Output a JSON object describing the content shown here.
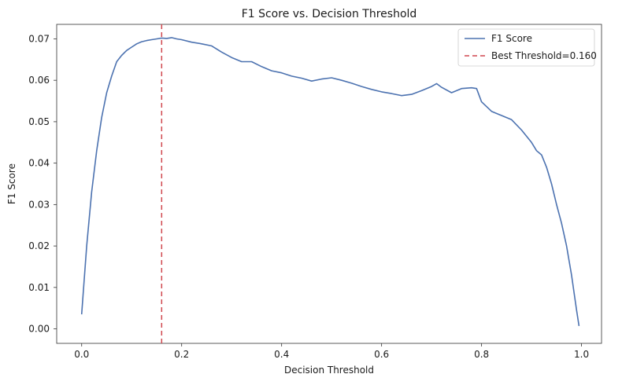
{
  "chart_data": {
    "type": "line",
    "title": "F1 Score vs. Decision Threshold",
    "xlabel": "Decision Threshold",
    "ylabel": "F1 Score",
    "xlim": [
      -0.05,
      1.04
    ],
    "ylim": [
      -0.0035,
      0.0735
    ],
    "xticks": [
      0.0,
      0.2,
      0.4,
      0.6,
      0.8,
      1.0
    ],
    "xtick_labels": [
      "0.0",
      "0.2",
      "0.4",
      "0.6",
      "0.8",
      "1.0"
    ],
    "yticks": [
      0.0,
      0.01,
      0.02,
      0.03,
      0.04,
      0.05,
      0.06,
      0.07
    ],
    "ytick_labels": [
      "0.00",
      "0.01",
      "0.02",
      "0.03",
      "0.04",
      "0.05",
      "0.06",
      "0.07"
    ],
    "grid": false,
    "legend_position": "top-right",
    "series": [
      {
        "name": "F1 Score",
        "color": "#4c72b0",
        "style": "solid",
        "x": [
          0.0,
          0.01,
          0.02,
          0.03,
          0.04,
          0.05,
          0.06,
          0.07,
          0.08,
          0.09,
          0.1,
          0.11,
          0.12,
          0.13,
          0.14,
          0.15,
          0.16,
          0.17,
          0.18,
          0.19,
          0.2,
          0.22,
          0.24,
          0.26,
          0.28,
          0.3,
          0.32,
          0.34,
          0.36,
          0.38,
          0.4,
          0.42,
          0.44,
          0.46,
          0.48,
          0.5,
          0.52,
          0.54,
          0.56,
          0.58,
          0.6,
          0.62,
          0.64,
          0.66,
          0.68,
          0.7,
          0.71,
          0.72,
          0.74,
          0.76,
          0.78,
          0.79,
          0.8,
          0.82,
          0.84,
          0.86,
          0.88,
          0.9,
          0.91,
          0.92,
          0.93,
          0.94,
          0.95,
          0.96,
          0.97,
          0.98,
          0.99,
          0.995
        ],
        "y": [
          0.0035,
          0.02,
          0.033,
          0.043,
          0.051,
          0.057,
          0.061,
          0.0645,
          0.066,
          0.0672,
          0.068,
          0.0688,
          0.0693,
          0.0696,
          0.0698,
          0.07,
          0.0702,
          0.0701,
          0.0703,
          0.07,
          0.0698,
          0.0692,
          0.0688,
          0.0683,
          0.0668,
          0.0655,
          0.0645,
          0.0645,
          0.0633,
          0.0623,
          0.0618,
          0.061,
          0.0605,
          0.0598,
          0.0603,
          0.0606,
          0.06,
          0.0593,
          0.0585,
          0.0578,
          0.0572,
          0.0568,
          0.0563,
          0.0566,
          0.0575,
          0.0585,
          0.0592,
          0.0583,
          0.057,
          0.058,
          0.0582,
          0.058,
          0.0548,
          0.0525,
          0.0515,
          0.0505,
          0.048,
          0.045,
          0.043,
          0.042,
          0.039,
          0.035,
          0.03,
          0.0255,
          0.02,
          0.013,
          0.0045,
          0.0007
        ]
      },
      {
        "name": "Best Threshold=0.160",
        "color": "#d0474e",
        "style": "dashed",
        "vline_x": 0.16
      }
    ]
  }
}
